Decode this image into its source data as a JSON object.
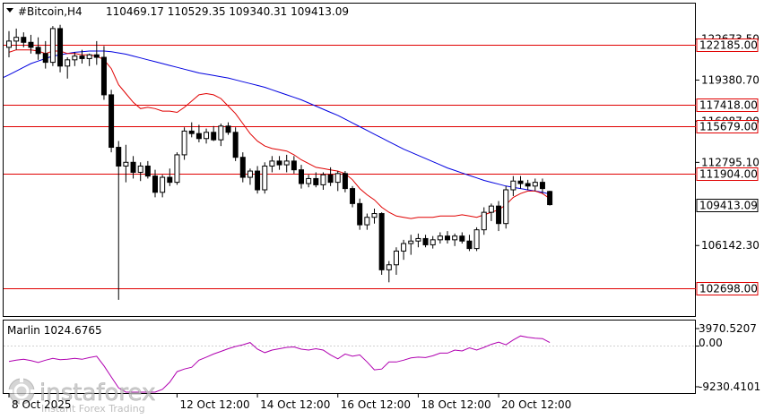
{
  "header": {
    "symbol": "#Bitcoin,H4",
    "ohlc": "110469.17 110529.35 109340.31 109413.09"
  },
  "indicator": {
    "name": "Marlin 1024.6765",
    "color": "#b000b0",
    "scale_top_label": "3970.5207",
    "scale_zero_label": "0.00",
    "scale_bottom_label": "-9230.4101",
    "ylim": [
      -9230.4101,
      3970.5207
    ]
  },
  "watermark": {
    "brand": "instaforex",
    "tagline": "Instant Forex Trading"
  },
  "chart_data": {
    "type": "candlestick",
    "ylim": [
      100500,
      125500
    ],
    "price_ticks": [
      "122673.50",
      "119380.70",
      "116087.90",
      "112795.10",
      "106142.30"
    ],
    "price_tick_values": [
      122673.5,
      119380.7,
      116087.9,
      112795.1,
      106142.3
    ],
    "x_tick_labels": [
      "8 Oct 2025",
      "12 Oct 12:00",
      "14 Oct 12:00",
      "16 Oct 12:00",
      "18 Oct 12:00",
      "20 Oct 12:00"
    ],
    "x_tick_index": [
      0,
      23,
      34,
      45,
      56,
      67
    ],
    "current_price": {
      "value": 109413.09,
      "label": "109413.09"
    },
    "levels": [
      {
        "value": 122185.0,
        "label": "122185.00"
      },
      {
        "value": 117418.0,
        "label": "117418.00"
      },
      {
        "value": 115679.0,
        "label": "115679.00"
      },
      {
        "value": 111904.0,
        "label": "111904.00"
      },
      {
        "value": 102698.0,
        "label": "102698.00"
      }
    ],
    "colors": {
      "bull": "#ffffff",
      "bear": "#000000",
      "wick": "#000000",
      "level": "#e00000",
      "ma_fast": "#e00000",
      "ma_slow": "#0000e0",
      "osc": "#b000b0"
    },
    "candles": [
      {
        "o": 122000,
        "h": 123300,
        "l": 121200,
        "c": 122500
      },
      {
        "o": 122500,
        "h": 123500,
        "l": 121800,
        "c": 122800
      },
      {
        "o": 122800,
        "h": 123200,
        "l": 122000,
        "c": 122400
      },
      {
        "o": 122400,
        "h": 123000,
        "l": 121500,
        "c": 122000
      },
      {
        "o": 122000,
        "h": 122800,
        "l": 121000,
        "c": 121500
      },
      {
        "o": 121500,
        "h": 122500,
        "l": 120300,
        "c": 120800
      },
      {
        "o": 120800,
        "h": 123700,
        "l": 120500,
        "c": 123500
      },
      {
        "o": 123500,
        "h": 123800,
        "l": 120000,
        "c": 120500
      },
      {
        "o": 120500,
        "h": 121200,
        "l": 119500,
        "c": 121000
      },
      {
        "o": 121000,
        "h": 121600,
        "l": 120500,
        "c": 121300
      },
      {
        "o": 121300,
        "h": 121800,
        "l": 120700,
        "c": 121100
      },
      {
        "o": 121100,
        "h": 121500,
        "l": 120500,
        "c": 121400
      },
      {
        "o": 121400,
        "h": 122500,
        "l": 120600,
        "c": 121200
      },
      {
        "o": 121200,
        "h": 122100,
        "l": 117800,
        "c": 118200
      },
      {
        "o": 118200,
        "h": 118600,
        "l": 113600,
        "c": 114000
      },
      {
        "o": 114000,
        "h": 114500,
        "l": 101800,
        "c": 112500
      },
      {
        "o": 112500,
        "h": 114200,
        "l": 111200,
        "c": 112800
      },
      {
        "o": 112800,
        "h": 113300,
        "l": 111500,
        "c": 112000
      },
      {
        "o": 112000,
        "h": 112800,
        "l": 111300,
        "c": 112500
      },
      {
        "o": 112500,
        "h": 112900,
        "l": 111500,
        "c": 111700
      },
      {
        "o": 111700,
        "h": 112200,
        "l": 110000,
        "c": 110400
      },
      {
        "o": 110400,
        "h": 111800,
        "l": 110000,
        "c": 111600
      },
      {
        "o": 111600,
        "h": 112300,
        "l": 110900,
        "c": 111200
      },
      {
        "o": 111200,
        "h": 113600,
        "l": 111000,
        "c": 113400
      },
      {
        "o": 113400,
        "h": 115600,
        "l": 113000,
        "c": 115300
      },
      {
        "o": 115300,
        "h": 116000,
        "l": 114800,
        "c": 115100
      },
      {
        "o": 115100,
        "h": 115800,
        "l": 114400,
        "c": 114700
      },
      {
        "o": 114700,
        "h": 115500,
        "l": 114300,
        "c": 115200
      },
      {
        "o": 115200,
        "h": 115700,
        "l": 114500,
        "c": 114600
      },
      {
        "o": 114600,
        "h": 115900,
        "l": 114100,
        "c": 115700
      },
      {
        "o": 115700,
        "h": 116000,
        "l": 115000,
        "c": 115200
      },
      {
        "o": 115200,
        "h": 115600,
        "l": 112900,
        "c": 113200
      },
      {
        "o": 113200,
        "h": 113600,
        "l": 111200,
        "c": 111600
      },
      {
        "o": 111600,
        "h": 112300,
        "l": 111000,
        "c": 112100
      },
      {
        "o": 112100,
        "h": 112500,
        "l": 110300,
        "c": 110600
      },
      {
        "o": 110600,
        "h": 112800,
        "l": 110300,
        "c": 112500
      },
      {
        "o": 112500,
        "h": 113300,
        "l": 112000,
        "c": 112900
      },
      {
        "o": 112900,
        "h": 113300,
        "l": 112200,
        "c": 112600
      },
      {
        "o": 112600,
        "h": 113400,
        "l": 112000,
        "c": 112900
      },
      {
        "o": 112900,
        "h": 113300,
        "l": 111900,
        "c": 112200
      },
      {
        "o": 112200,
        "h": 112600,
        "l": 110700,
        "c": 111100
      },
      {
        "o": 111100,
        "h": 111800,
        "l": 110800,
        "c": 111500
      },
      {
        "o": 111500,
        "h": 112000,
        "l": 110800,
        "c": 111000
      },
      {
        "o": 111000,
        "h": 112000,
        "l": 110600,
        "c": 111800
      },
      {
        "o": 111800,
        "h": 112400,
        "l": 110900,
        "c": 111200
      },
      {
        "o": 111200,
        "h": 112100,
        "l": 110500,
        "c": 111900
      },
      {
        "o": 111900,
        "h": 112100,
        "l": 110400,
        "c": 110700
      },
      {
        "o": 110700,
        "h": 110900,
        "l": 109200,
        "c": 109500
      },
      {
        "o": 109500,
        "h": 109900,
        "l": 107400,
        "c": 107800
      },
      {
        "o": 107800,
        "h": 108700,
        "l": 107400,
        "c": 108400
      },
      {
        "o": 108400,
        "h": 109100,
        "l": 107900,
        "c": 108700
      },
      {
        "o": 108700,
        "h": 108800,
        "l": 103800,
        "c": 104200
      },
      {
        "o": 104200,
        "h": 104900,
        "l": 103200,
        "c": 104600
      },
      {
        "o": 104600,
        "h": 106000,
        "l": 103800,
        "c": 105700
      },
      {
        "o": 105700,
        "h": 106600,
        "l": 105000,
        "c": 106300
      },
      {
        "o": 106300,
        "h": 107000,
        "l": 105400,
        "c": 106500
      },
      {
        "o": 106500,
        "h": 107100,
        "l": 106000,
        "c": 106700
      },
      {
        "o": 106700,
        "h": 107000,
        "l": 106000,
        "c": 106200
      },
      {
        "o": 106200,
        "h": 106900,
        "l": 105900,
        "c": 106600
      },
      {
        "o": 106600,
        "h": 107200,
        "l": 106300,
        "c": 106900
      },
      {
        "o": 106900,
        "h": 107300,
        "l": 106300,
        "c": 106600
      },
      {
        "o": 106600,
        "h": 107100,
        "l": 106100,
        "c": 106900
      },
      {
        "o": 106900,
        "h": 107200,
        "l": 106300,
        "c": 106500
      },
      {
        "o": 106500,
        "h": 107000,
        "l": 105700,
        "c": 105900
      },
      {
        "o": 105900,
        "h": 107600,
        "l": 105700,
        "c": 107400
      },
      {
        "o": 107400,
        "h": 109200,
        "l": 107000,
        "c": 108800
      },
      {
        "o": 108800,
        "h": 109500,
        "l": 108100,
        "c": 109300
      },
      {
        "o": 109300,
        "h": 109700,
        "l": 107300,
        "c": 107900
      },
      {
        "o": 107900,
        "h": 110900,
        "l": 107500,
        "c": 110600
      },
      {
        "o": 110600,
        "h": 111700,
        "l": 110100,
        "c": 111300
      },
      {
        "o": 111300,
        "h": 111700,
        "l": 110700,
        "c": 111100
      },
      {
        "o": 111100,
        "h": 111400,
        "l": 110600,
        "c": 110900
      },
      {
        "o": 110900,
        "h": 111500,
        "l": 110500,
        "c": 111200
      },
      {
        "o": 111200,
        "h": 111500,
        "l": 110300,
        "c": 110700
      },
      {
        "o": 110469.17,
        "h": 110529.35,
        "l": 109340.31,
        "c": 109413.09
      }
    ],
    "ma_fast": [
      121600,
      121800,
      121800,
      121800,
      121700,
      121500,
      121700,
      121700,
      121500,
      121500,
      121400,
      121400,
      121300,
      121000,
      120300,
      119000,
      118300,
      117600,
      117100,
      117200,
      117100,
      116900,
      116900,
      116800,
      117200,
      117700,
      118200,
      118300,
      118200,
      117900,
      117300,
      116700,
      115900,
      115100,
      114500,
      114100,
      113900,
      113800,
      113700,
      113400,
      113000,
      112700,
      112400,
      112300,
      112200,
      112100,
      111900,
      111400,
      110700,
      110200,
      109800,
      109200,
      108800,
      108500,
      108400,
      108300,
      108400,
      108400,
      108400,
      108500,
      108500,
      108500,
      108600,
      108500,
      108400,
      108600,
      108800,
      109000,
      109400,
      110000,
      110300,
      110500,
      110500,
      110300,
      109900
    ],
    "ma_slow": [
      119800,
      120100,
      120400,
      120700,
      120900,
      121100,
      121300,
      121400,
      121500,
      121600,
      121650,
      121700,
      121700,
      121700,
      121650,
      121550,
      121450,
      121300,
      121150,
      121000,
      120850,
      120700,
      120550,
      120400,
      120250,
      120100,
      119950,
      119850,
      119750,
      119650,
      119550,
      119400,
      119250,
      119100,
      118950,
      118800,
      118600,
      118400,
      118200,
      118000,
      117800,
      117550,
      117300,
      117050,
      116800,
      116550,
      116250,
      115950,
      115650,
      115350,
      115050,
      114750,
      114450,
      114150,
      113850,
      113600,
      113350,
      113100,
      112850,
      112600,
      112350,
      112150,
      111950,
      111750,
      111550,
      111350,
      111200,
      111050,
      110900,
      110800,
      110700,
      110600,
      110500,
      110400,
      110250
    ],
    "oscillator": [
      -3500,
      -3200,
      -3000,
      -3300,
      -3700,
      -3200,
      -2800,
      -3100,
      -3000,
      -2800,
      -3000,
      -2600,
      -2300,
      -4500,
      -7000,
      -9500,
      -10500,
      -11200,
      -11600,
      -12000,
      -10800,
      -9800,
      -8200,
      -5800,
      -5200,
      -4800,
      -3200,
      -2500,
      -1800,
      -1200,
      -600,
      -100,
      300,
      800,
      -700,
      -1500,
      -900,
      -600,
      -300,
      -200,
      -700,
      -900,
      -600,
      -900,
      -2000,
      -2900,
      -1800,
      -2300,
      -2000,
      -3600,
      -5400,
      -5200,
      -3600,
      -3600,
      -3200,
      -2700,
      -2500,
      -2600,
      -2200,
      -1600,
      -1600,
      -900,
      -1100,
      -400,
      -900,
      -300,
      400,
      900,
      300,
      1400,
      2300,
      2000,
      1800,
      1700,
      800
    ]
  }
}
